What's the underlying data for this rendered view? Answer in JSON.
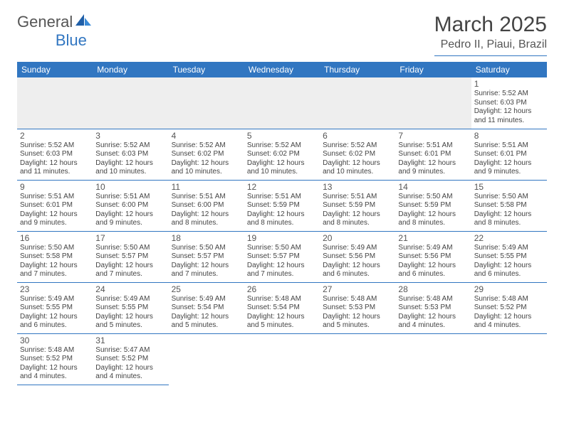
{
  "logo": {
    "text1": "General",
    "text2": "Blue"
  },
  "header": {
    "title": "March 2025",
    "location": "Pedro II, Piaui, Brazil"
  },
  "colors": {
    "accent": "#3176c1",
    "header_bg": "#3176c1",
    "header_fg": "#ffffff",
    "text": "#444444",
    "grey_row": "#eeeeee"
  },
  "daysOfWeek": [
    "Sunday",
    "Monday",
    "Tuesday",
    "Wednesday",
    "Thursday",
    "Friday",
    "Saturday"
  ],
  "weeks": [
    [
      null,
      null,
      null,
      null,
      null,
      null,
      {
        "n": "1",
        "sr": "Sunrise: 5:52 AM",
        "ss": "Sunset: 6:03 PM",
        "dl": "Daylight: 12 hours and 11 minutes."
      }
    ],
    [
      {
        "n": "2",
        "sr": "Sunrise: 5:52 AM",
        "ss": "Sunset: 6:03 PM",
        "dl": "Daylight: 12 hours and 11 minutes."
      },
      {
        "n": "3",
        "sr": "Sunrise: 5:52 AM",
        "ss": "Sunset: 6:03 PM",
        "dl": "Daylight: 12 hours and 10 minutes."
      },
      {
        "n": "4",
        "sr": "Sunrise: 5:52 AM",
        "ss": "Sunset: 6:02 PM",
        "dl": "Daylight: 12 hours and 10 minutes."
      },
      {
        "n": "5",
        "sr": "Sunrise: 5:52 AM",
        "ss": "Sunset: 6:02 PM",
        "dl": "Daylight: 12 hours and 10 minutes."
      },
      {
        "n": "6",
        "sr": "Sunrise: 5:52 AM",
        "ss": "Sunset: 6:02 PM",
        "dl": "Daylight: 12 hours and 10 minutes."
      },
      {
        "n": "7",
        "sr": "Sunrise: 5:51 AM",
        "ss": "Sunset: 6:01 PM",
        "dl": "Daylight: 12 hours and 9 minutes."
      },
      {
        "n": "8",
        "sr": "Sunrise: 5:51 AM",
        "ss": "Sunset: 6:01 PM",
        "dl": "Daylight: 12 hours and 9 minutes."
      }
    ],
    [
      {
        "n": "9",
        "sr": "Sunrise: 5:51 AM",
        "ss": "Sunset: 6:01 PM",
        "dl": "Daylight: 12 hours and 9 minutes."
      },
      {
        "n": "10",
        "sr": "Sunrise: 5:51 AM",
        "ss": "Sunset: 6:00 PM",
        "dl": "Daylight: 12 hours and 9 minutes."
      },
      {
        "n": "11",
        "sr": "Sunrise: 5:51 AM",
        "ss": "Sunset: 6:00 PM",
        "dl": "Daylight: 12 hours and 8 minutes."
      },
      {
        "n": "12",
        "sr": "Sunrise: 5:51 AM",
        "ss": "Sunset: 5:59 PM",
        "dl": "Daylight: 12 hours and 8 minutes."
      },
      {
        "n": "13",
        "sr": "Sunrise: 5:51 AM",
        "ss": "Sunset: 5:59 PM",
        "dl": "Daylight: 12 hours and 8 minutes."
      },
      {
        "n": "14",
        "sr": "Sunrise: 5:50 AM",
        "ss": "Sunset: 5:59 PM",
        "dl": "Daylight: 12 hours and 8 minutes."
      },
      {
        "n": "15",
        "sr": "Sunrise: 5:50 AM",
        "ss": "Sunset: 5:58 PM",
        "dl": "Daylight: 12 hours and 8 minutes."
      }
    ],
    [
      {
        "n": "16",
        "sr": "Sunrise: 5:50 AM",
        "ss": "Sunset: 5:58 PM",
        "dl": "Daylight: 12 hours and 7 minutes."
      },
      {
        "n": "17",
        "sr": "Sunrise: 5:50 AM",
        "ss": "Sunset: 5:57 PM",
        "dl": "Daylight: 12 hours and 7 minutes."
      },
      {
        "n": "18",
        "sr": "Sunrise: 5:50 AM",
        "ss": "Sunset: 5:57 PM",
        "dl": "Daylight: 12 hours and 7 minutes."
      },
      {
        "n": "19",
        "sr": "Sunrise: 5:50 AM",
        "ss": "Sunset: 5:57 PM",
        "dl": "Daylight: 12 hours and 7 minutes."
      },
      {
        "n": "20",
        "sr": "Sunrise: 5:49 AM",
        "ss": "Sunset: 5:56 PM",
        "dl": "Daylight: 12 hours and 6 minutes."
      },
      {
        "n": "21",
        "sr": "Sunrise: 5:49 AM",
        "ss": "Sunset: 5:56 PM",
        "dl": "Daylight: 12 hours and 6 minutes."
      },
      {
        "n": "22",
        "sr": "Sunrise: 5:49 AM",
        "ss": "Sunset: 5:55 PM",
        "dl": "Daylight: 12 hours and 6 minutes."
      }
    ],
    [
      {
        "n": "23",
        "sr": "Sunrise: 5:49 AM",
        "ss": "Sunset: 5:55 PM",
        "dl": "Daylight: 12 hours and 6 minutes."
      },
      {
        "n": "24",
        "sr": "Sunrise: 5:49 AM",
        "ss": "Sunset: 5:55 PM",
        "dl": "Daylight: 12 hours and 5 minutes."
      },
      {
        "n": "25",
        "sr": "Sunrise: 5:49 AM",
        "ss": "Sunset: 5:54 PM",
        "dl": "Daylight: 12 hours and 5 minutes."
      },
      {
        "n": "26",
        "sr": "Sunrise: 5:48 AM",
        "ss": "Sunset: 5:54 PM",
        "dl": "Daylight: 12 hours and 5 minutes."
      },
      {
        "n": "27",
        "sr": "Sunrise: 5:48 AM",
        "ss": "Sunset: 5:53 PM",
        "dl": "Daylight: 12 hours and 5 minutes."
      },
      {
        "n": "28",
        "sr": "Sunrise: 5:48 AM",
        "ss": "Sunset: 5:53 PM",
        "dl": "Daylight: 12 hours and 4 minutes."
      },
      {
        "n": "29",
        "sr": "Sunrise: 5:48 AM",
        "ss": "Sunset: 5:52 PM",
        "dl": "Daylight: 12 hours and 4 minutes."
      }
    ],
    [
      {
        "n": "30",
        "sr": "Sunrise: 5:48 AM",
        "ss": "Sunset: 5:52 PM",
        "dl": "Daylight: 12 hours and 4 minutes."
      },
      {
        "n": "31",
        "sr": "Sunrise: 5:47 AM",
        "ss": "Sunset: 5:52 PM",
        "dl": "Daylight: 12 hours and 4 minutes."
      },
      null,
      null,
      null,
      null,
      null
    ]
  ]
}
